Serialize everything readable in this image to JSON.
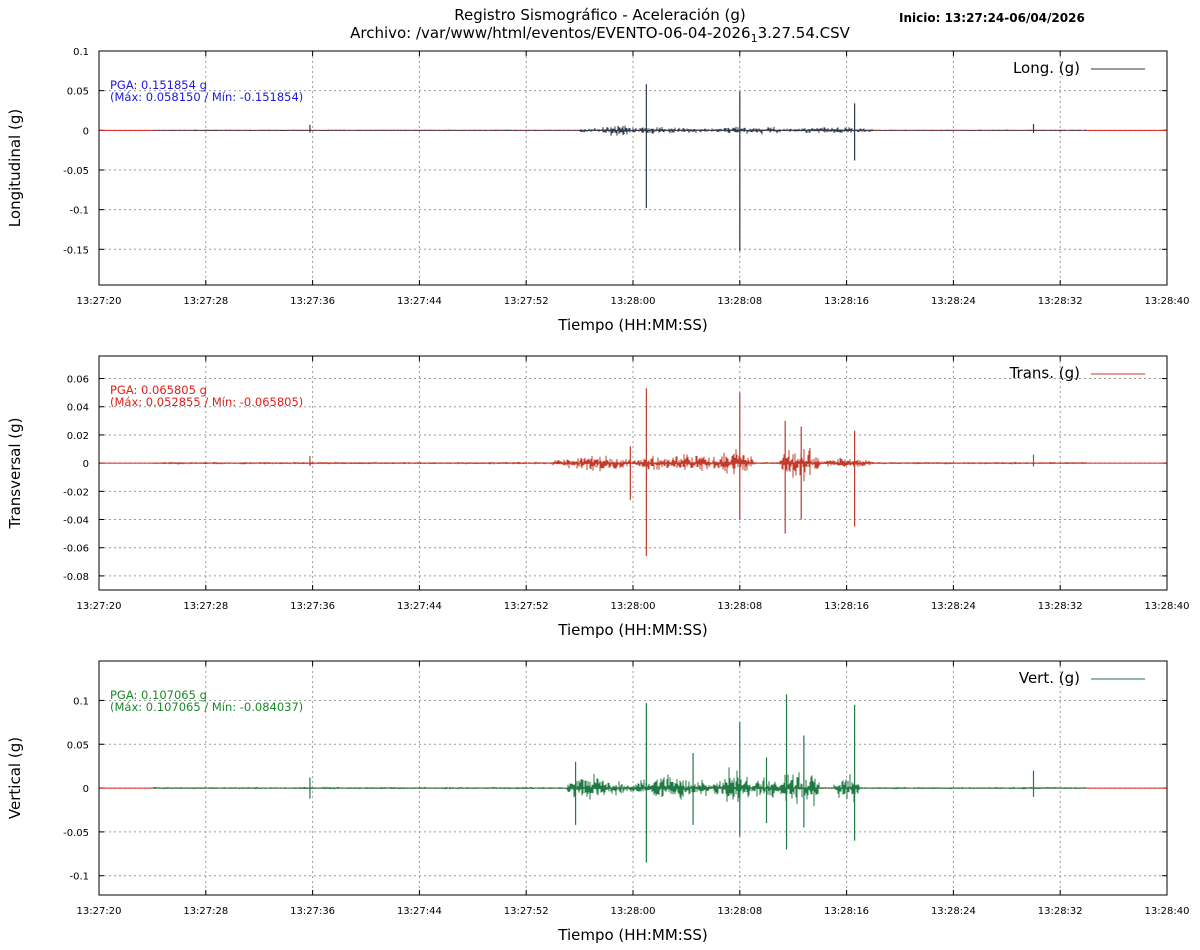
{
  "header": {
    "title": "Registro Sismográfico - Aceleración (g)",
    "file_prefix": "Archivo: /var/www/html/eventos/EVENTO-06-04-2026",
    "file_sub": "1",
    "file_suffix": "3.27.54.CSV",
    "start": "Inicio: 13:27:24-06/04/2026"
  },
  "chart_data": [
    {
      "type": "line",
      "ylabel": "Longitudinal (g)",
      "xlabel": "Tiempo (HH:MM:SS)",
      "legend": "Long. (g)",
      "legend_position": "top-right",
      "color": "#2b3a4d",
      "pga_label": "PGA: 0.151854 g",
      "maxmin_label": "(Máx: 0.058150 / Mín: -0.151854)",
      "pga_color": "#1a1ad9",
      "pga": 0.151854,
      "max": 0.05815,
      "min": -0.151854,
      "ylim": [
        -0.195,
        0.1
      ],
      "yticks": [
        0.1,
        0.05,
        0,
        -0.05,
        -0.1,
        -0.15
      ],
      "ytick_labels": [
        "0.1",
        "0.05",
        "0",
        "-0.05",
        "-0.1",
        "-0.15"
      ],
      "xlim": [
        "13:27:20",
        "13:28:40"
      ],
      "xticks": [
        "13:27:20",
        "13:27:28",
        "13:27:36",
        "13:27:44",
        "13:27:52",
        "13:28:00",
        "13:28:08",
        "13:28:16",
        "13:28:24",
        "13:28:32",
        "13:28:40"
      ],
      "grid": true,
      "record_start": "13:27:24",
      "record_end": "13:28:34",
      "noise": 0.0008,
      "segments": [
        {
          "start": "13:27:56",
          "end": "13:28:06",
          "amp": 0.006
        },
        {
          "start": "13:27:58",
          "end": "13:28:00",
          "amp": 0.012
        },
        {
          "start": "13:28:06",
          "end": "13:28:12",
          "amp": 0.006
        },
        {
          "start": "13:28:12",
          "end": "13:28:18",
          "amp": 0.005
        }
      ],
      "spikes": [
        {
          "t": "13:27:35.8",
          "v": 0.007
        },
        {
          "t": "13:28:01",
          "v": 0.058,
          "v2": -0.098
        },
        {
          "t": "13:28:08",
          "v": 0.049,
          "v2": -0.152
        },
        {
          "t": "13:28:16.6",
          "v": 0.034,
          "v2": -0.038
        },
        {
          "t": "13:28:30",
          "v": 0.008
        }
      ]
    },
    {
      "type": "line",
      "ylabel": "Transversal (g)",
      "xlabel": "Tiempo (HH:MM:SS)",
      "legend": "Trans. (g)",
      "legend_position": "top-right",
      "color": "#c23b2a",
      "pga_label": "PGA: 0.065805 g",
      "maxmin_label": "(Máx: 0.052855 / Mín: -0.065805)",
      "pga_color": "#e0201a",
      "pga": 0.065805,
      "max": 0.052855,
      "min": -0.065805,
      "ylim": [
        -0.09,
        0.076
      ],
      "yticks": [
        0.06,
        0.04,
        0.02,
        0,
        -0.02,
        -0.04,
        -0.06,
        -0.08
      ],
      "ytick_labels": [
        "0.06",
        "0.04",
        "0.02",
        "0",
        "-0.02",
        "-0.04",
        "-0.06",
        "-0.08"
      ],
      "xlim": [
        "13:27:20",
        "13:28:40"
      ],
      "xticks": [
        "13:27:20",
        "13:27:28",
        "13:27:36",
        "13:27:44",
        "13:27:52",
        "13:28:00",
        "13:28:08",
        "13:28:16",
        "13:28:24",
        "13:28:32",
        "13:28:40"
      ],
      "grid": true,
      "record_start": "13:27:24",
      "record_end": "13:28:34",
      "noise": 0.0008,
      "segments": [
        {
          "start": "13:27:54",
          "end": "13:28:00",
          "amp": 0.007
        },
        {
          "start": "13:28:00",
          "end": "13:28:08",
          "amp": 0.008
        },
        {
          "start": "13:28:06",
          "end": "13:28:09",
          "amp": 0.012
        },
        {
          "start": "13:28:11",
          "end": "13:28:14",
          "amp": 0.016
        },
        {
          "start": "13:28:14",
          "end": "13:28:18",
          "amp": 0.005
        }
      ],
      "spikes": [
        {
          "t": "13:27:35.8",
          "v": 0.005
        },
        {
          "t": "13:27:59.8",
          "v": 0.012,
          "v2": -0.026
        },
        {
          "t": "13:28:01",
          "v": 0.053,
          "v2": -0.066
        },
        {
          "t": "13:28:08",
          "v": 0.05,
          "v2": -0.04
        },
        {
          "t": "13:28:11.4",
          "v": 0.03,
          "v2": -0.05
        },
        {
          "t": "13:28:12.6",
          "v": 0.026,
          "v2": -0.04
        },
        {
          "t": "13:28:16.6",
          "v": 0.023,
          "v2": -0.045
        },
        {
          "t": "13:28:30",
          "v": 0.006
        }
      ]
    },
    {
      "type": "line",
      "ylabel": "Vertical (g)",
      "xlabel": "Tiempo (HH:MM:SS)",
      "legend": "Vert. (g)",
      "legend_position": "top-right",
      "color": "#1f7a43",
      "pga_label": "PGA: 0.107065 g",
      "maxmin_label": "(Máx: 0.107065 / Mín: -0.084037)",
      "pga_color": "#1a8a2a",
      "pga": 0.107065,
      "max": 0.107065,
      "min": -0.084037,
      "ylim": [
        -0.122,
        0.145
      ],
      "yticks": [
        0.1,
        0.05,
        0,
        -0.05,
        -0.1
      ],
      "ytick_labels": [
        "0.1",
        "0.05",
        "0",
        "-0.05",
        "-0.1"
      ],
      "xlim": [
        "13:27:20",
        "13:28:40"
      ],
      "xticks": [
        "13:27:20",
        "13:27:28",
        "13:27:36",
        "13:27:44",
        "13:27:52",
        "13:28:00",
        "13:28:08",
        "13:28:16",
        "13:28:24",
        "13:28:32",
        "13:28:40"
      ],
      "grid": true,
      "record_start": "13:27:24",
      "record_end": "13:28:34",
      "noise": 0.0012,
      "segments": [
        {
          "start": "13:27:55",
          "end": "13:27:58",
          "amp": 0.02
        },
        {
          "start": "13:27:58",
          "end": "13:28:00",
          "amp": 0.012
        },
        {
          "start": "13:28:00",
          "end": "13:28:06",
          "amp": 0.018
        },
        {
          "start": "13:28:06",
          "end": "13:28:09",
          "amp": 0.028
        },
        {
          "start": "13:28:09",
          "end": "13:28:11",
          "amp": 0.02
        },
        {
          "start": "13:28:11",
          "end": "13:28:14",
          "amp": 0.03
        },
        {
          "start": "13:28:15",
          "end": "13:28:17",
          "amp": 0.02
        }
      ],
      "spikes": [
        {
          "t": "13:27:35.8",
          "v": 0.012,
          "v2": -0.012
        },
        {
          "t": "13:27:55.7",
          "v": 0.03,
          "v2": -0.042
        },
        {
          "t": "13:28:01",
          "v": 0.097,
          "v2": -0.085
        },
        {
          "t": "13:28:04.5",
          "v": 0.04,
          "v2": -0.042
        },
        {
          "t": "13:28:08",
          "v": 0.075,
          "v2": -0.055
        },
        {
          "t": "13:28:10",
          "v": 0.035,
          "v2": -0.04
        },
        {
          "t": "13:28:11.5",
          "v": 0.107,
          "v2": -0.07
        },
        {
          "t": "13:28:12.8",
          "v": 0.06,
          "v2": -0.045
        },
        {
          "t": "13:28:16.6",
          "v": 0.095,
          "v2": -0.06
        },
        {
          "t": "13:28:30",
          "v": 0.02,
          "v2": -0.01
        }
      ]
    }
  ]
}
